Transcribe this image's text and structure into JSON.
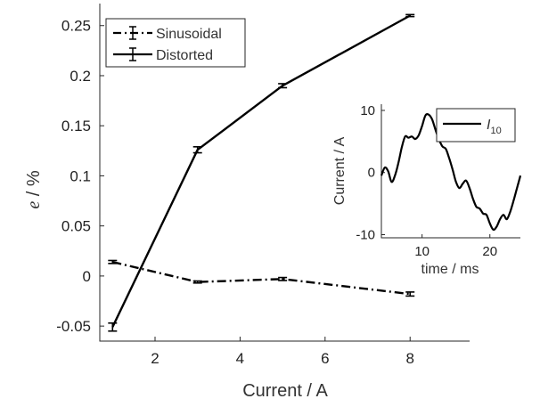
{
  "chart_data": [
    {
      "type": "line",
      "xlabel": "Current / A",
      "ylabel_symbol": "e",
      "ylabel_unit": " / %",
      "xlim": [
        0.7,
        9.4
      ],
      "ylim": [
        -0.065,
        0.272
      ],
      "xticks": [
        2,
        4,
        6,
        8
      ],
      "yticks": [
        -0.05,
        0,
        0.05,
        0.1,
        0.15,
        0.2,
        0.25
      ],
      "ytick_labels": [
        "-0.05",
        "0",
        "0.05",
        "0.1",
        "0.15",
        "0.2",
        "0.25"
      ],
      "grid": false,
      "legend_position": "top-left",
      "series": [
        {
          "name": "Sinusoidal",
          "style": "dashdot",
          "x": [
            1,
            3,
            5,
            8
          ],
          "y": [
            0.014,
            -0.006,
            -0.003,
            -0.018
          ],
          "err": [
            0.0015,
            0.001,
            0.0015,
            0.002
          ]
        },
        {
          "name": "Distorted",
          "style": "solid",
          "x": [
            1,
            3,
            5,
            8
          ],
          "y": [
            -0.051,
            0.126,
            0.19,
            0.26
          ],
          "err": [
            0.004,
            0.003,
            0.002,
            0.001
          ]
        }
      ]
    },
    {
      "type": "line",
      "xlabel": "time / ms",
      "ylabel": "Current / A",
      "xlim": [
        4,
        24.5
      ],
      "ylim": [
        -10.5,
        11
      ],
      "xticks": [
        10,
        20
      ],
      "yticks": [
        -10,
        0,
        10
      ],
      "grid": false,
      "legend_position": "top-right",
      "series": [
        {
          "name_main": "I",
          "name_sub": "10",
          "style": "solid",
          "x": [
            4,
            4.5,
            5,
            5.5,
            6,
            6.5,
            7,
            7.5,
            8,
            8.5,
            9,
            9.5,
            10,
            10.5,
            11,
            11.5,
            12,
            12.5,
            13,
            13.5,
            14,
            14.5,
            15,
            15.5,
            16,
            16.5,
            17,
            17.5,
            18,
            18.5,
            19,
            19.5,
            20,
            20.5,
            21,
            21.5,
            22,
            22.5,
            23,
            23.5,
            24,
            24.5
          ],
          "y": [
            -0.5,
            0.8,
            0.2,
            -1.5,
            -0.5,
            1.5,
            4,
            5.8,
            5.6,
            5.8,
            5.4,
            6,
            7.5,
            9.2,
            9.3,
            8.5,
            6.8,
            5.3,
            4.2,
            3.8,
            2.3,
            0.5,
            -1.5,
            -2.5,
            -1.8,
            -1.3,
            -2.5,
            -4.2,
            -5.5,
            -5.8,
            -6.6,
            -6.8,
            -8.2,
            -9.2,
            -8.7,
            -7.5,
            -6.8,
            -7.5,
            -6.3,
            -4.5,
            -2.5,
            -0.5
          ]
        }
      ]
    }
  ]
}
